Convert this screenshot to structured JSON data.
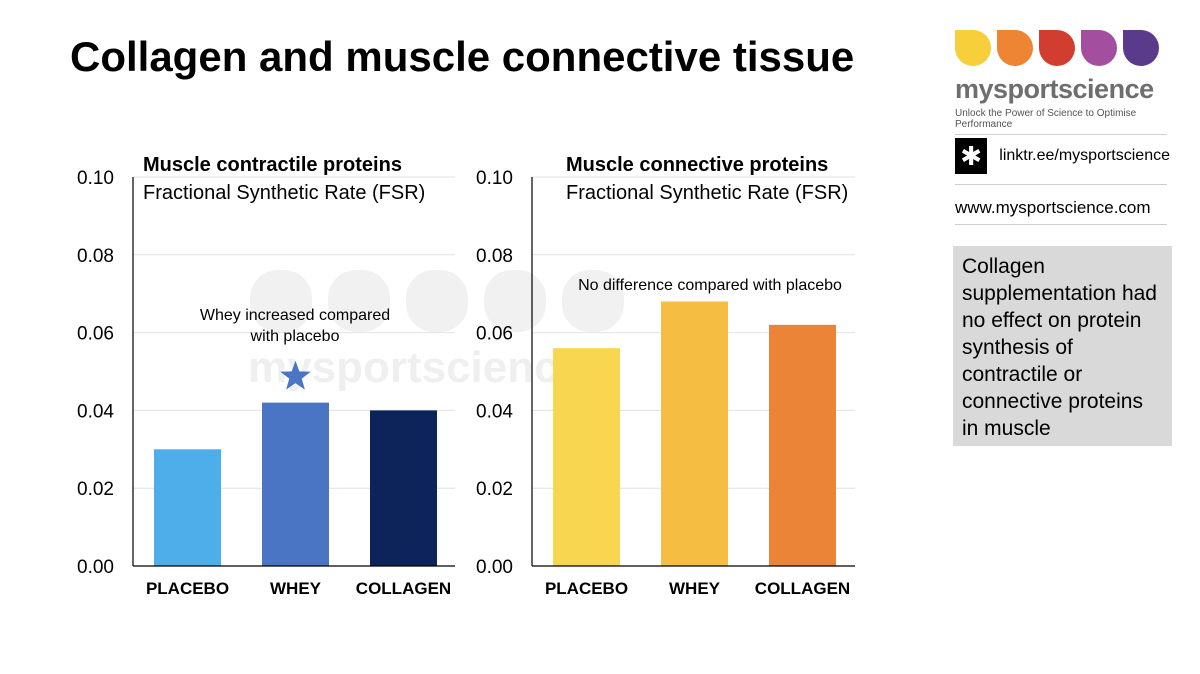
{
  "title": "Collagen and muscle connective tissue",
  "brand": {
    "name": "mysportscience",
    "tagline": "Unlock the Power of Science to Optimise Performance",
    "link": "linktr.ee/mysportscience",
    "website": "www.mysportscience.com",
    "drop_colors": [
      "#f7cf3b",
      "#ee8535",
      "#d13d2e",
      "#a34e9f",
      "#5a3a8b"
    ]
  },
  "watermark": "mysportscience",
  "note": "Collagen supplementation had no effect on protein synthesis of contractile or connective proteins in muscle",
  "chart_data": [
    {
      "type": "bar",
      "title": "Muscle contractile proteins",
      "subtitle": "Fractional Synthetic Rate (FSR)",
      "categories": [
        "PLACEBO",
        "WHEY",
        "COLLAGEN"
      ],
      "values": [
        0.03,
        0.042,
        0.04
      ],
      "colors": [
        "#4daeea",
        "#4a74c4",
        "#0c245a"
      ],
      "ylim": [
        0,
        0.1
      ],
      "yticks": [
        "0.00",
        "0.02",
        "0.04",
        "0.06",
        "0.08",
        "0.10"
      ],
      "grid": true,
      "annotation": "Whey increased compared with placebo",
      "marker": "star above WHEY"
    },
    {
      "type": "bar",
      "title": "Muscle connective proteins",
      "subtitle": "Fractional Synthetic Rate (FSR)",
      "categories": [
        "PLACEBO",
        "WHEY",
        "COLLAGEN"
      ],
      "values": [
        0.056,
        0.068,
        0.062
      ],
      "colors": [
        "#f8d650",
        "#f5be42",
        "#ec8438"
      ],
      "ylim": [
        0,
        0.1
      ],
      "yticks": [
        "0.00",
        "0.02",
        "0.04",
        "0.06",
        "0.08",
        "0.10"
      ],
      "grid": true,
      "annotation": "No difference compared with placebo"
    }
  ]
}
